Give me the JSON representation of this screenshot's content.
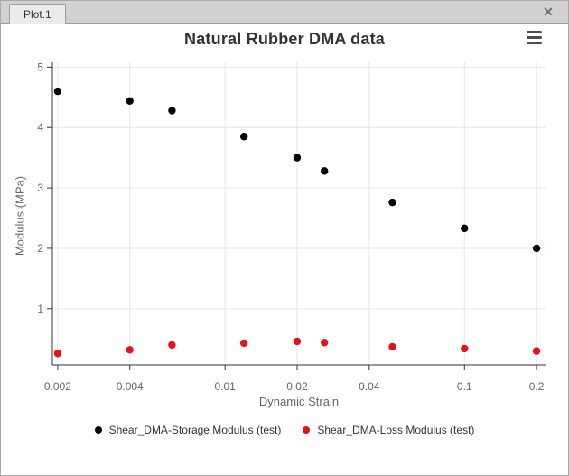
{
  "window": {
    "tab_label": "Plot.1",
    "close_icon": "✕"
  },
  "chart_data": {
    "type": "scatter",
    "title": "Natural Rubber DMA data",
    "xlabel": "Dynamic Strain",
    "ylabel": "Modulus (MPa)",
    "x_scale": "log",
    "xlim": [
      0.0019,
      0.218
    ],
    "ylim": [
      0.07,
      5.08
    ],
    "x_ticks": [
      0.002,
      0.004,
      0.01,
      0.02,
      0.04,
      0.1,
      0.2
    ],
    "x_tick_labels": [
      "0.002",
      "0.004",
      "0.01",
      "0.02",
      "0.04",
      "0.1",
      "0.2"
    ],
    "y_ticks": [
      1,
      2,
      3,
      4,
      5
    ],
    "y_tick_labels": [
      "1",
      "2",
      "3",
      "4",
      "5"
    ],
    "grid": true,
    "legend_position": "bottom",
    "series": [
      {
        "name": "Shear_DMA-Storage Modulus (test)",
        "color": "#000000",
        "marker": "circle",
        "points": [
          [
            0.002,
            4.6
          ],
          [
            0.004,
            4.44
          ],
          [
            0.006,
            4.28
          ],
          [
            0.012,
            3.85
          ],
          [
            0.02,
            3.5
          ],
          [
            0.026,
            3.28
          ],
          [
            0.05,
            2.76
          ],
          [
            0.1,
            2.33
          ],
          [
            0.2,
            2.0
          ]
        ]
      },
      {
        "name": "Shear_DMA-Loss Modulus (test)",
        "color": "#e3131b",
        "marker": "circle",
        "points": [
          [
            0.002,
            0.26
          ],
          [
            0.004,
            0.32
          ],
          [
            0.006,
            0.4
          ],
          [
            0.012,
            0.43
          ],
          [
            0.02,
            0.46
          ],
          [
            0.026,
            0.44
          ],
          [
            0.05,
            0.37
          ],
          [
            0.1,
            0.34
          ],
          [
            0.2,
            0.3
          ]
        ]
      }
    ],
    "colors": {
      "grid": "#e6e6e6",
      "axis": "#333333",
      "tick_label": "#666666",
      "axis_title": "#666666",
      "title": "#333333"
    }
  }
}
